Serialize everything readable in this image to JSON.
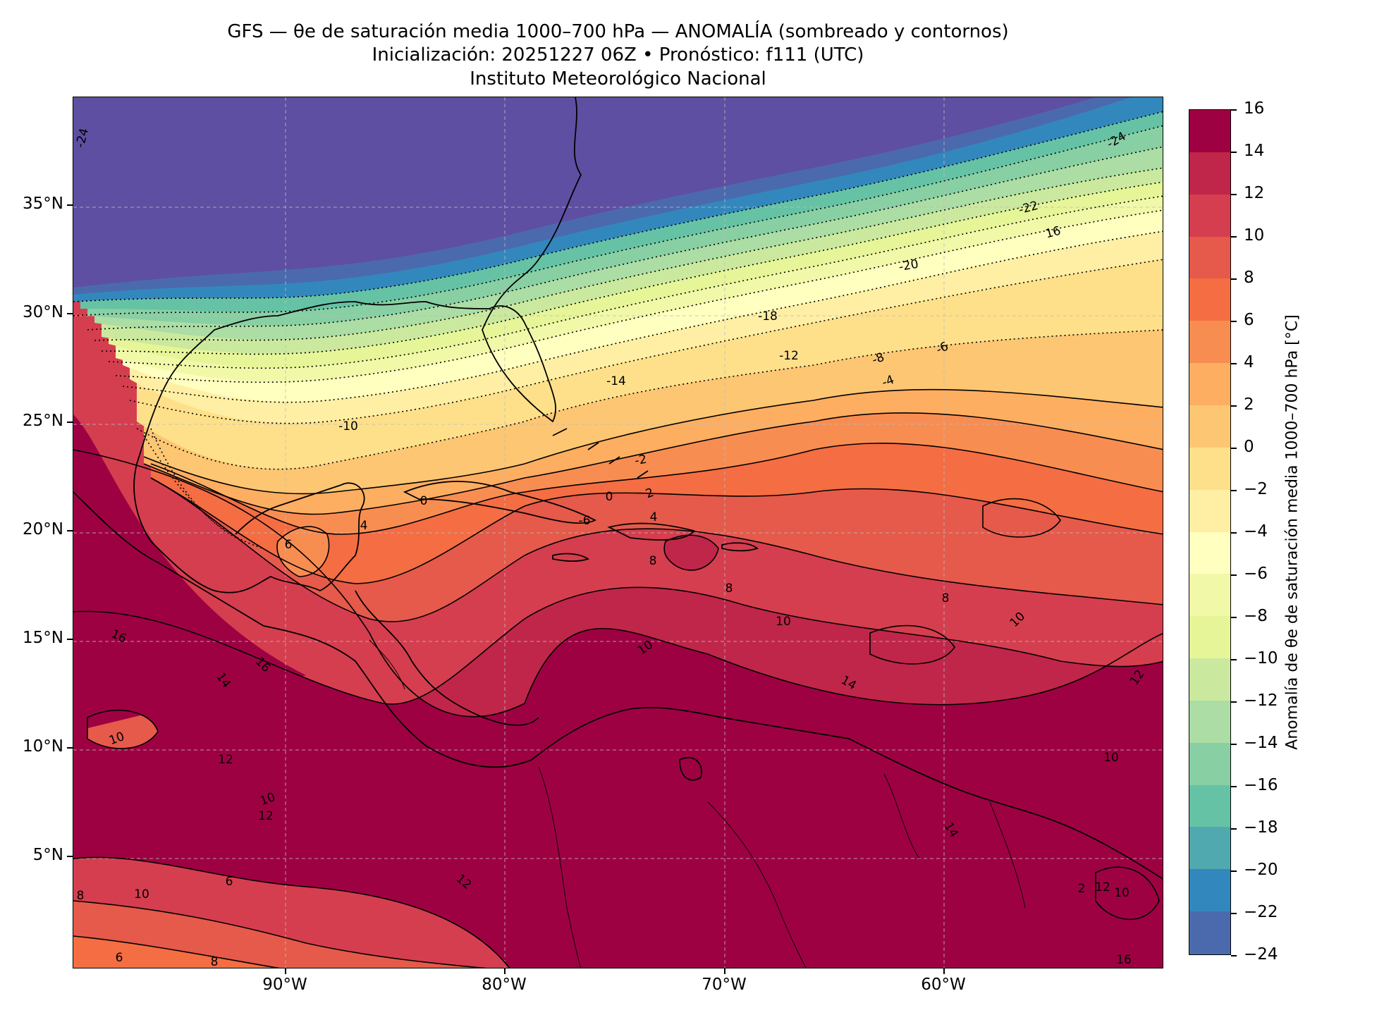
{
  "header": {
    "title_line1": "GFS — θe de saturación media 1000–700 hPa — ANOMALÍA (sombreado y contornos)",
    "title_line2": "Inicialización: 20251227 06Z   •   Pronóstico: f111 (UTC)",
    "title_line3": "Instituto Meteorológico Nacional"
  },
  "map": {
    "lat_labels": [
      "35°N",
      "30°N",
      "25°N",
      "20°N",
      "15°N",
      "10°N",
      "5°N"
    ],
    "lon_labels": [
      "90°W",
      "80°W",
      "70°W",
      "60°W"
    ],
    "extent": {
      "lon_min": -99.7,
      "lon_max": -50.0,
      "lat_min": 0.2,
      "lat_max": 39.7
    },
    "contour_labels": [
      "-24",
      "-24",
      "-22",
      "16",
      "-20",
      "-18",
      "-6",
      "-12",
      "-8",
      "-4",
      "-14",
      "-10",
      "-2",
      "2",
      "0",
      "0",
      "4",
      "-6",
      "4",
      "6",
      "8",
      "8",
      "8",
      "10",
      "10",
      "10",
      "12",
      "16",
      "16",
      "14",
      "14",
      "10",
      "12",
      "12",
      "10",
      "12",
      "6",
      "8",
      "10",
      "6",
      "8",
      "10",
      "14",
      "16",
      "12",
      "10",
      "2"
    ]
  },
  "colorbar": {
    "label": "Anomalía de θe de saturación media 1000–700 hPa [°C]",
    "tick_labels": [
      "16",
      "14",
      "12",
      "10",
      "8",
      "6",
      "4",
      "2",
      "0",
      "−2",
      "−4",
      "−6",
      "−8",
      "−10",
      "−12",
      "−14",
      "−16",
      "−18",
      "−20",
      "−22",
      "−24"
    ],
    "colors": [
      "#9e0142",
      "#c0264a",
      "#d53e4f",
      "#e55a4a",
      "#f46d43",
      "#f88d52",
      "#fdae61",
      "#fdc673",
      "#fee08b",
      "#feefa4",
      "#ffffbf",
      "#f1f9a9",
      "#e6f598",
      "#cbe99e",
      "#abdda4",
      "#88cfa4",
      "#66c2a5",
      "#50a9af",
      "#3288bd",
      "#4b6aae",
      "#5e4fa2"
    ]
  }
}
